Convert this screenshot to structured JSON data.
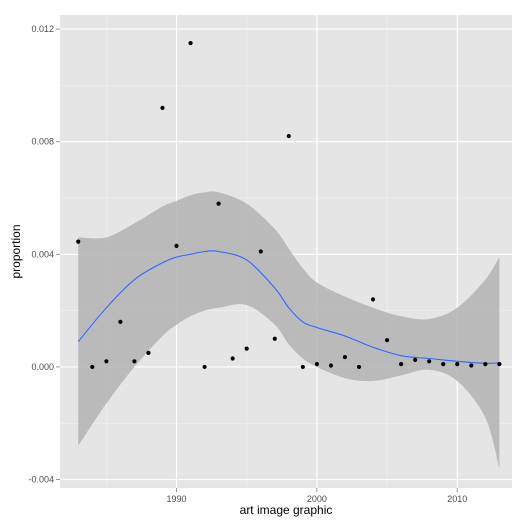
{
  "chart_data": {
    "type": "scatter",
    "xlabel": "art image graphic",
    "ylabel": "proportion",
    "xlim": [
      1981.7,
      2013.9
    ],
    "ylim": [
      -0.0043,
      0.0125
    ],
    "xticks": [
      1990,
      2000,
      2010
    ],
    "xtick_labels": [
      "1990",
      "2000",
      "2010"
    ],
    "yticks": [
      -0.004,
      0.0,
      0.004,
      0.008,
      0.012
    ],
    "ytick_labels": [
      "-0.004",
      "0.000",
      "0.004",
      "0.008",
      "0.012"
    ],
    "grid": true,
    "panel_background": "#e5e5e5",
    "point_color": "#000000",
    "smooth_color": "#3366ff",
    "ribbon_color": "#b3b3b3",
    "points": [
      {
        "x": 1983,
        "y": 0.00445
      },
      {
        "x": 1984,
        "y": 0.0
      },
      {
        "x": 1985,
        "y": 0.0002
      },
      {
        "x": 1986,
        "y": 0.0016
      },
      {
        "x": 1987,
        "y": 0.0002
      },
      {
        "x": 1988,
        "y": 0.0005
      },
      {
        "x": 1989,
        "y": 0.0092
      },
      {
        "x": 1990,
        "y": 0.0043
      },
      {
        "x": 1991,
        "y": 0.0115
      },
      {
        "x": 1992,
        "y": 0.0
      },
      {
        "x": 1993,
        "y": 0.0058
      },
      {
        "x": 1994,
        "y": 0.0003
      },
      {
        "x": 1995,
        "y": 0.00065
      },
      {
        "x": 1996,
        "y": 0.0041
      },
      {
        "x": 1997,
        "y": 0.001
      },
      {
        "x": 1998,
        "y": 0.0082
      },
      {
        "x": 1999,
        "y": 0.0
      },
      {
        "x": 2000,
        "y": 0.0001
      },
      {
        "x": 2001,
        "y": 5e-05
      },
      {
        "x": 2002,
        "y": 0.00035
      },
      {
        "x": 2003,
        "y": 0.0
      },
      {
        "x": 2004,
        "y": 0.0024
      },
      {
        "x": 2005,
        "y": 0.00095
      },
      {
        "x": 2006,
        "y": 0.0001
      },
      {
        "x": 2007,
        "y": 0.00025
      },
      {
        "x": 2008,
        "y": 0.0002
      },
      {
        "x": 2009,
        "y": 0.0001
      },
      {
        "x": 2010,
        "y": 0.0001
      },
      {
        "x": 2011,
        "y": 5e-05
      },
      {
        "x": 2012,
        "y": 0.0001
      },
      {
        "x": 2013,
        "y": 0.0001
      }
    ],
    "smooth": {
      "x": [
        1983,
        1985,
        1987,
        1989,
        1990,
        1991,
        1992,
        1993,
        1995,
        1997,
        1998,
        1999,
        2000,
        2002,
        2004,
        2006,
        2008,
        2010,
        2012,
        2013
      ],
      "y": [
        0.0009,
        0.0021,
        0.0031,
        0.0037,
        0.0039,
        0.004,
        0.0041,
        0.0041,
        0.0038,
        0.0028,
        0.0021,
        0.0016,
        0.0014,
        0.0011,
        0.0007,
        0.0004,
        0.0003,
        0.0002,
        0.00013,
        0.00015
      ],
      "ymin": [
        -0.0028,
        -0.0013,
        0.0,
        0.0011,
        0.0015,
        0.0018,
        0.002,
        0.0021,
        0.0022,
        0.0015,
        0.0008,
        0.0003,
        0.0,
        -0.0004,
        -0.0005,
        -0.0003,
        -0.0001,
        -0.0005,
        -0.0018,
        -0.0036
      ],
      "ymax": [
        0.0046,
        0.0046,
        0.0051,
        0.0057,
        0.0059,
        0.0061,
        0.0062,
        0.0062,
        0.0058,
        0.0049,
        0.0042,
        0.0035,
        0.003,
        0.0025,
        0.0021,
        0.0018,
        0.0017,
        0.0021,
        0.0031,
        0.0039
      ]
    }
  }
}
